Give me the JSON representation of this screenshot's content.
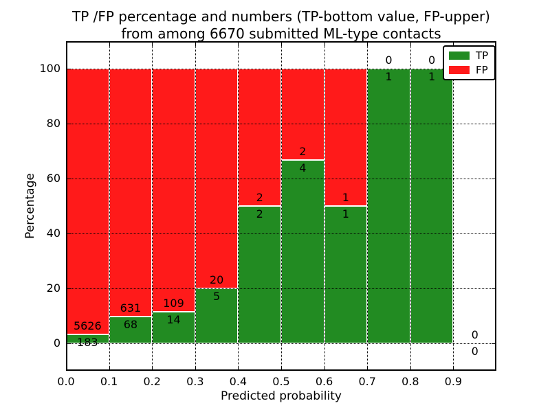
{
  "title_line1": "TP /FP percentage and numbers (TP-bottom value, FP-upper)",
  "title_line2": "from among 6670 submitted ML-type contacts",
  "chart_data": {
    "type": "bar",
    "stacked": true,
    "normalized_to_percent": true,
    "title": "TP /FP percentage and numbers (TP-bottom value, FP-upper) from among 6670 submitted ML-type contacts",
    "xlabel": "Predicted probability",
    "ylabel": "Percentage",
    "xlim": [
      0.0,
      1.0
    ],
    "ylim": [
      -10,
      110
    ],
    "bin_width": 0.1,
    "bin_starts": [
      0.0,
      0.1,
      0.2,
      0.3,
      0.4,
      0.5,
      0.6,
      0.7,
      0.8,
      0.9
    ],
    "categories": [
      "0.0-0.1",
      "0.1-0.2",
      "0.2-0.3",
      "0.3-0.4",
      "0.4-0.5",
      "0.5-0.6",
      "0.6-0.7",
      "0.7-0.8",
      "0.8-0.9",
      "0.9-1.0"
    ],
    "series": [
      {
        "name": "TP",
        "color": "#228B22",
        "counts": [
          183,
          68,
          14,
          5,
          2,
          4,
          1,
          1,
          1,
          0
        ]
      },
      {
        "name": "FP",
        "color": "#FF1A1A",
        "counts": [
          5626,
          631,
          109,
          20,
          2,
          2,
          1,
          0,
          0,
          0
        ]
      }
    ],
    "total_contacts": 6670,
    "x_tick_labels": [
      "0.0",
      "0.1",
      "0.2",
      "0.3",
      "0.4",
      "0.5",
      "0.6",
      "0.7",
      "0.8",
      "0.9"
    ],
    "x_tick_values": [
      0.0,
      0.1,
      0.2,
      0.3,
      0.4,
      0.5,
      0.6,
      0.7,
      0.8,
      0.9
    ],
    "y_tick_labels": [
      "0",
      "20",
      "40",
      "60",
      "80",
      "100"
    ],
    "y_tick_values": [
      0,
      20,
      40,
      60,
      80,
      100
    ],
    "grid": true,
    "legend_position": "upper right"
  }
}
